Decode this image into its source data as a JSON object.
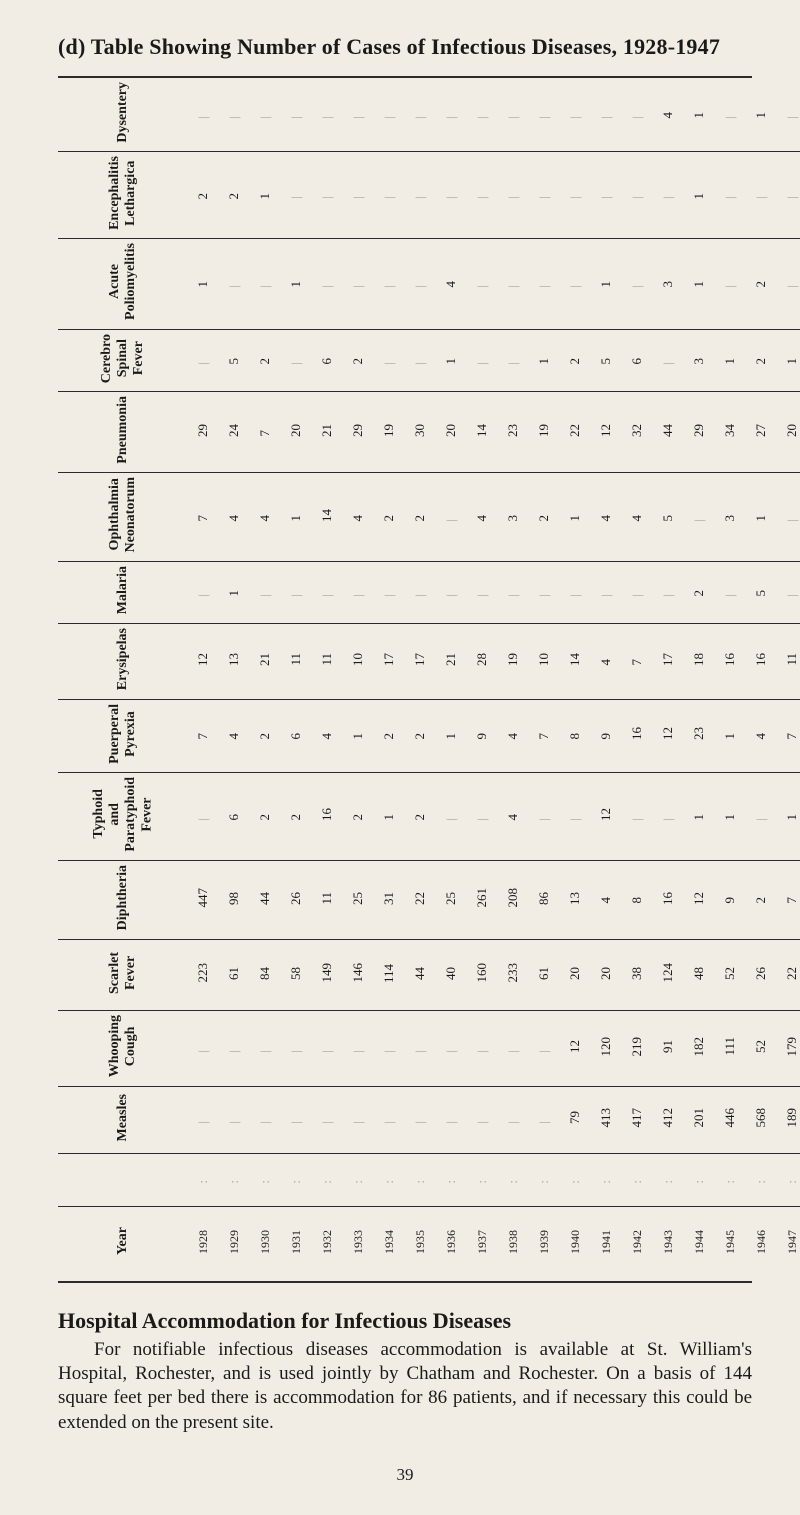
{
  "title": "(d) Table Showing Number of Cases of Infectious Diseases, 1928-1947",
  "years": [
    "1928",
    "1929",
    "1930",
    "1931",
    "1932",
    "1933",
    "1934",
    "1935",
    "1936",
    "1937",
    "1938",
    "1939",
    "1940",
    "1941",
    "1942",
    "1943",
    "1944",
    "1945",
    "1946",
    "1947"
  ],
  "rows": [
    {
      "label": "Dysentery",
      "data": [
        "",
        "",
        "",
        "",
        "",
        "",
        "",
        "",
        "",
        "",
        "",
        "",
        "",
        "",
        "",
        "4",
        "1",
        "",
        "1",
        ""
      ]
    },
    {
      "label": "Encephalitis\nLethargica",
      "data": [
        "2",
        "2",
        "1",
        "",
        "",
        "",
        "",
        "",
        "",
        "",
        "",
        "",
        "",
        "",
        "",
        "",
        "1",
        "",
        "",
        ""
      ]
    },
    {
      "label": "Acute\nPoliomyelitis",
      "data": [
        "1",
        "",
        "",
        "1",
        "",
        "",
        "",
        "",
        "4",
        "",
        "",
        "",
        "",
        "1",
        "",
        "3",
        "1",
        "",
        "2",
        ""
      ]
    },
    {
      "label": "Cerebro\nSpinal Fever",
      "data": [
        "",
        "5",
        "2",
        "",
        "6",
        "2",
        "",
        "",
        "1",
        "",
        "",
        "1",
        "2",
        "5",
        "6",
        "",
        "3",
        "1",
        "2",
        "1"
      ]
    },
    {
      "label": "Pneumonia",
      "data": [
        "29",
        "24",
        "7",
        "20",
        "21",
        "29",
        "19",
        "30",
        "20",
        "14",
        "23",
        "19",
        "22",
        "12",
        "32",
        "44",
        "29",
        "34",
        "27",
        "20"
      ]
    },
    {
      "label": "Ophthalmia\nNeonatorum",
      "data": [
        "7",
        "4",
        "4",
        "1",
        "14",
        "4",
        "2",
        "2",
        "",
        "4",
        "3",
        "2",
        "1",
        "4",
        "4",
        "5",
        "",
        "3",
        "1",
        ""
      ]
    },
    {
      "label": "Malaria",
      "data": [
        "",
        "1",
        "",
        "",
        "",
        "",
        "",
        "",
        "",
        "",
        "",
        "",
        "",
        "",
        "",
        "",
        "2",
        "",
        "5",
        ""
      ]
    },
    {
      "label": "Erysipelas",
      "data": [
        "12",
        "13",
        "21",
        "11",
        "11",
        "10",
        "17",
        "17",
        "21",
        "28",
        "19",
        "10",
        "14",
        "4",
        "7",
        "17",
        "18",
        "16",
        "16",
        "11"
      ]
    },
    {
      "label": "Puerperal\nPyrexia",
      "data": [
        "7",
        "4",
        "2",
        "6",
        "4",
        "1",
        "2",
        "2",
        "1",
        "9",
        "4",
        "7",
        "8",
        "9",
        "16",
        "12",
        "23",
        "1",
        "4",
        "7"
      ]
    },
    {
      "label": "Typhoid and\nParatyphoid\nFever",
      "data": [
        "",
        "6",
        "2",
        "2",
        "16",
        "2",
        "1",
        "2",
        "",
        "",
        "4",
        "",
        "",
        "12",
        "",
        "",
        "1",
        "1",
        "",
        "1"
      ]
    },
    {
      "label": "Diphtheria",
      "data": [
        "447",
        "98",
        "44",
        "26",
        "11",
        "25",
        "31",
        "22",
        "25",
        "261",
        "208",
        "86",
        "13",
        "4",
        "8",
        "16",
        "12",
        "9",
        "2",
        "7"
      ]
    },
    {
      "label": "Scarlet\nFever",
      "data": [
        "223",
        "61",
        "84",
        "58",
        "149",
        "146",
        "114",
        "44",
        "40",
        "160",
        "233",
        "61",
        "20",
        "20",
        "38",
        "124",
        "48",
        "52",
        "26",
        "22"
      ]
    },
    {
      "label": "Whooping\nCough",
      "data": [
        "",
        "",
        "",
        "",
        "",
        "",
        "",
        "",
        "",
        "",
        "",
        "",
        "12",
        "120",
        "219",
        "91",
        "182",
        "111",
        "52",
        "179"
      ]
    },
    {
      "label": "Measles",
      "data": [
        "",
        "",
        "",
        "",
        "",
        "",
        "",
        "",
        "",
        "",
        "",
        "",
        "79",
        "413",
        "417",
        "412",
        "201",
        "446",
        "568",
        "189"
      ]
    }
  ],
  "bodyHeading": "Hospital Accommodation for Infectious Diseases",
  "bodyPara": "For notifiable infectious diseases accommodation is available at St. William's Hospital, Rochester, and is used jointly by Chatham and Rochester. On a basis of 144 square feet per bed there is accommodation for 86 patients, and if necessary this could be extended on the present site.",
  "pageNumber": "39",
  "yearLabel": "Year"
}
